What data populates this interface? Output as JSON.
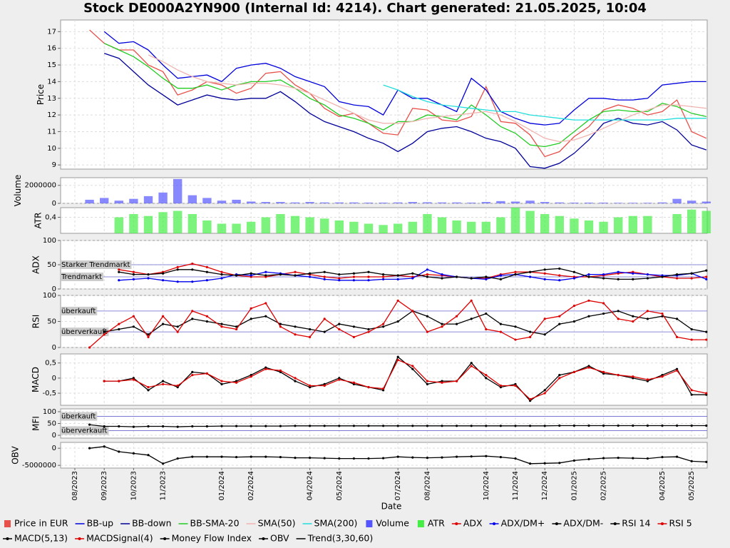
{
  "title": "Stock DE000A2YN900 (Internal Id: 4214). Chart generated: 21.05.2025, 10:04",
  "xlabel": "Date",
  "legend_note": "Trend(3,30,60)",
  "categories": [
    "08/2023",
    null,
    "09/2023",
    null,
    "10/2023",
    null,
    "11/2023",
    null,
    null,
    null,
    "01/2024",
    null,
    "02/2024",
    null,
    null,
    null,
    "04/2024",
    null,
    "05/2024",
    null,
    null,
    null,
    "07/2024",
    null,
    "08/2024",
    null,
    null,
    null,
    "10/2024",
    null,
    "11/2024",
    null,
    "12/2024",
    null,
    "01/2025",
    null,
    "02/2025",
    null,
    null,
    null,
    "04/2025",
    null,
    "05/2025",
    null
  ],
  "chart_data": [
    {
      "type": "line",
      "ylabel": "Price",
      "ylim": [
        8.75,
        17.7
      ],
      "yticks": [
        9,
        10,
        11,
        12,
        13,
        14,
        15,
        16,
        17
      ],
      "grid": true,
      "series": [
        {
          "name": "Price in EUR",
          "color": "#e8504a",
          "values": [
            null,
            17.1,
            16.3,
            15.9,
            15.9,
            15.0,
            14.6,
            13.2,
            13.5,
            14.0,
            13.8,
            13.3,
            13.6,
            14.5,
            14.6,
            13.8,
            13.3,
            12.4,
            11.9,
            12.1,
            11.5,
            10.9,
            10.8,
            12.4,
            12.3,
            11.7,
            11.6,
            11.9,
            13.7,
            11.6,
            11.5,
            10.8,
            9.5,
            9.8,
            10.7,
            11.3,
            12.3,
            12.6,
            12.4,
            12.0,
            12.2,
            12.9,
            11.0,
            10.6
          ]
        },
        {
          "name": "BB-up",
          "color": "#0000dd",
          "values": [
            null,
            null,
            17.0,
            16.3,
            16.4,
            15.9,
            15.0,
            14.2,
            14.3,
            14.4,
            14.0,
            14.8,
            15.0,
            15.1,
            14.8,
            14.3,
            14.0,
            13.7,
            12.8,
            12.6,
            12.5,
            12.0,
            13.5,
            13.0,
            13.0,
            12.6,
            12.2,
            14.2,
            13.5,
            12.2,
            11.8,
            11.5,
            11.4,
            11.5,
            12.3,
            13.0,
            13.0,
            12.9,
            12.9,
            13.0,
            13.8,
            13.9,
            14.0,
            14.0
          ]
        },
        {
          "name": "BB-down",
          "color": "#000099",
          "values": [
            null,
            null,
            15.7,
            15.4,
            14.6,
            13.8,
            13.2,
            12.6,
            12.9,
            13.2,
            13.0,
            12.9,
            13.0,
            13.0,
            13.4,
            12.8,
            12.1,
            11.6,
            11.3,
            11.0,
            10.6,
            10.3,
            9.8,
            10.3,
            11.0,
            11.2,
            11.3,
            11.0,
            10.6,
            10.4,
            10.0,
            8.9,
            8.8,
            9.1,
            9.7,
            10.5,
            11.5,
            11.8,
            11.5,
            11.4,
            11.6,
            11.1,
            10.2,
            9.9
          ]
        },
        {
          "name": "BB-SMA-20",
          "color": "#22cc22",
          "values": [
            null,
            null,
            16.3,
            15.9,
            15.5,
            14.9,
            14.2,
            13.6,
            13.6,
            13.8,
            13.5,
            13.8,
            14.0,
            14.0,
            14.1,
            13.6,
            13.0,
            12.6,
            12.0,
            11.8,
            11.5,
            11.1,
            11.6,
            11.6,
            12.0,
            11.9,
            11.7,
            12.6,
            12.0,
            11.3,
            10.9,
            10.2,
            10.1,
            10.3,
            11.0,
            11.7,
            12.2,
            12.3,
            12.2,
            12.2,
            12.7,
            12.5,
            12.1,
            11.9
          ]
        },
        {
          "name": "SMA(50)",
          "color": "#f0b4b0",
          "values": [
            null,
            null,
            null,
            null,
            null,
            15.6,
            15.2,
            14.7,
            14.3,
            14.0,
            13.9,
            13.8,
            13.9,
            13.9,
            13.8,
            13.6,
            13.3,
            12.9,
            12.5,
            12.1,
            11.7,
            11.5,
            11.5,
            11.6,
            11.8,
            11.9,
            12.0,
            12.1,
            12.2,
            12.0,
            11.6,
            11.1,
            10.6,
            10.4,
            10.5,
            10.8,
            11.2,
            11.6,
            12.0,
            12.3,
            12.6,
            12.6,
            12.5,
            12.4
          ]
        },
        {
          "name": "SMA(200)",
          "color": "#22dddd",
          "values": [
            null,
            null,
            null,
            null,
            null,
            null,
            null,
            null,
            null,
            null,
            null,
            null,
            null,
            null,
            null,
            null,
            null,
            null,
            null,
            null,
            null,
            13.8,
            13.5,
            13.1,
            12.8,
            12.6,
            12.5,
            12.4,
            12.3,
            12.2,
            12.2,
            12.0,
            11.9,
            11.8,
            11.7,
            11.7,
            11.7,
            11.7,
            11.7,
            11.7,
            11.7,
            11.8,
            11.8,
            11.8
          ]
        }
      ]
    },
    {
      "type": "bar",
      "ylabel": "Volume",
      "ylim": [
        0,
        2850000
      ],
      "yticks": [
        0,
        2000000
      ],
      "grid": true,
      "series": [
        {
          "name": "Volume",
          "color": "#5555ff",
          "values": [
            null,
            400000,
            600000,
            300000,
            500000,
            800000,
            1200000,
            2700000,
            900000,
            600000,
            300000,
            400000,
            200000,
            150000,
            150000,
            100000,
            150000,
            100000,
            100000,
            100000,
            80000,
            80000,
            100000,
            150000,
            120000,
            100000,
            100000,
            80000,
            150000,
            250000,
            200000,
            300000,
            150000,
            100000,
            80000,
            80000,
            80000,
            60000,
            60000,
            60000,
            100000,
            500000,
            300000,
            200000
          ]
        }
      ]
    },
    {
      "type": "bar",
      "ylabel": "ATR",
      "ylim": [
        0.15,
        0.55
      ],
      "yticks": [
        {
          "value": 0.4,
          "label": "0,4"
        }
      ],
      "grid": true,
      "series": [
        {
          "name": "ATR",
          "color": "#44ee44",
          "values": [
            null,
            null,
            null,
            0.4,
            0.45,
            0.42,
            0.48,
            0.5,
            0.45,
            0.35,
            0.3,
            0.3,
            0.33,
            0.4,
            0.45,
            0.42,
            0.4,
            0.38,
            0.35,
            0.33,
            0.3,
            0.28,
            0.3,
            0.33,
            0.45,
            0.4,
            0.35,
            0.33,
            0.33,
            0.4,
            0.55,
            0.5,
            0.45,
            0.42,
            0.38,
            0.35,
            0.33,
            0.4,
            0.42,
            0.42,
            null,
            0.45,
            0.52,
            0.5
          ]
        }
      ]
    },
    {
      "type": "line",
      "ylabel": "ADX",
      "ylim": [
        0,
        100
      ],
      "yticks": [
        0,
        50,
        100
      ],
      "grid": true,
      "annotations": [
        {
          "value": 50,
          "label": "Starker Trendmarkt"
        },
        {
          "value": 25,
          "label": "Trendmarkt"
        }
      ],
      "series": [
        {
          "name": "ADX",
          "color": "#dd0000",
          "markers": true,
          "values": [
            null,
            null,
            null,
            40,
            35,
            30,
            35,
            45,
            52,
            45,
            35,
            28,
            25,
            25,
            30,
            35,
            30,
            25,
            22,
            25,
            25,
            25,
            28,
            25,
            30,
            28,
            25,
            22,
            22,
            30,
            35,
            35,
            32,
            28,
            25,
            25,
            28,
            32,
            35,
            30,
            25,
            22,
            22,
            25
          ]
        },
        {
          "name": "ADX/DM+",
          "color": "#0000ee",
          "markers": true,
          "values": [
            null,
            null,
            null,
            18,
            20,
            22,
            18,
            15,
            15,
            18,
            22,
            30,
            28,
            35,
            32,
            28,
            25,
            20,
            18,
            18,
            18,
            20,
            20,
            22,
            40,
            30,
            25,
            22,
            20,
            28,
            30,
            25,
            20,
            18,
            22,
            30,
            30,
            35,
            32,
            30,
            28,
            28,
            32,
            20
          ]
        },
        {
          "name": "ADX/DM-",
          "color": "#000000",
          "markers": true,
          "values": [
            null,
            null,
            null,
            35,
            30,
            30,
            32,
            40,
            40,
            35,
            30,
            28,
            32,
            28,
            30,
            28,
            32,
            35,
            30,
            32,
            35,
            30,
            28,
            32,
            25,
            22,
            25,
            22,
            25,
            20,
            30,
            35,
            40,
            42,
            35,
            25,
            22,
            20,
            20,
            22,
            25,
            30,
            32,
            38
          ]
        }
      ]
    },
    {
      "type": "line",
      "ylabel": "RSI",
      "ylim": [
        0,
        100
      ],
      "yticks": [
        0,
        50,
        100
      ],
      "grid": true,
      "annotations": [
        {
          "value": 70,
          "label": "überkauft"
        },
        {
          "value": 30,
          "label": "überverkauft"
        }
      ],
      "series": [
        {
          "name": "RSI 14",
          "color": "#000000",
          "markers": true,
          "values": [
            null,
            null,
            30,
            35,
            40,
            25,
            45,
            40,
            55,
            50,
            45,
            40,
            55,
            60,
            45,
            40,
            35,
            30,
            45,
            40,
            35,
            40,
            50,
            70,
            60,
            45,
            45,
            55,
            65,
            45,
            40,
            30,
            25,
            45,
            50,
            60,
            65,
            70,
            60,
            55,
            60,
            55,
            35,
            30
          ]
        },
        {
          "name": "RSI 5",
          "color": "#dd0000",
          "markers": true,
          "values": [
            null,
            0,
            25,
            45,
            60,
            20,
            60,
            30,
            70,
            60,
            40,
            35,
            75,
            85,
            40,
            25,
            20,
            55,
            35,
            20,
            30,
            45,
            90,
            70,
            30,
            40,
            60,
            90,
            35,
            30,
            15,
            20,
            55,
            60,
            80,
            90,
            85,
            55,
            50,
            70,
            65,
            20,
            15,
            15
          ]
        }
      ]
    },
    {
      "type": "line",
      "ylabel": "MACD",
      "ylim": [
        -0.9,
        0.8
      ],
      "yticks": [
        {
          "value": -0.5,
          "label": "-0,5"
        },
        0,
        {
          "value": 0.5,
          "label": "0,5"
        }
      ],
      "grid": true,
      "series": [
        {
          "name": "MACD(5,13)",
          "color": "#000000",
          "markers": true,
          "values": [
            null,
            null,
            -0.1,
            -0.1,
            0.0,
            -0.4,
            -0.1,
            -0.3,
            0.2,
            0.15,
            -0.2,
            -0.1,
            0.1,
            0.35,
            0.2,
            -0.1,
            -0.3,
            -0.2,
            0.0,
            -0.2,
            -0.3,
            -0.4,
            0.7,
            0.3,
            -0.2,
            -0.1,
            -0.1,
            0.5,
            0.0,
            -0.3,
            -0.2,
            -0.75,
            -0.4,
            0.1,
            0.2,
            0.4,
            0.15,
            0.1,
            0.0,
            -0.1,
            0.1,
            0.3,
            -0.55,
            -0.55
          ]
        },
        {
          "name": "MACDSignal(4)",
          "color": "#dd0000",
          "markers": true,
          "values": [
            null,
            null,
            -0.1,
            -0.1,
            -0.05,
            -0.3,
            -0.2,
            -0.25,
            0.1,
            0.15,
            -0.1,
            -0.15,
            0.05,
            0.3,
            0.25,
            0.0,
            -0.25,
            -0.25,
            -0.05,
            -0.15,
            -0.3,
            -0.35,
            0.6,
            0.4,
            -0.1,
            -0.15,
            -0.1,
            0.4,
            0.1,
            -0.25,
            -0.25,
            -0.7,
            -0.5,
            0.0,
            0.2,
            0.35,
            0.2,
            0.1,
            0.05,
            -0.05,
            0.05,
            0.25,
            -0.4,
            -0.5
          ]
        }
      ]
    },
    {
      "type": "line",
      "ylabel": "MFI",
      "ylim": [
        -12,
        112
      ],
      "yticks": [
        0,
        50,
        100
      ],
      "grid": true,
      "annotations": [
        {
          "value": 80,
          "label": "überkauft"
        },
        {
          "value": 20,
          "label": "überverkauft"
        }
      ],
      "series": [
        {
          "name": "Money Flow Index",
          "color": "#000000",
          "markers": true,
          "values": [
            null,
            45,
            38,
            38,
            36,
            38,
            38,
            36,
            38,
            38,
            39,
            39,
            39,
            39,
            39,
            40,
            40,
            40,
            40,
            40,
            40,
            40,
            40,
            40,
            40,
            40,
            40,
            40,
            40,
            40,
            40,
            40,
            40,
            41,
            41,
            41,
            41,
            41,
            41,
            41,
            41,
            41,
            41,
            41
          ]
        }
      ]
    },
    {
      "type": "line",
      "ylabel": "OBV",
      "ylim": [
        -5800000,
        1700000
      ],
      "yticks": [
        -5000000,
        0
      ],
      "grid": true,
      "series": [
        {
          "name": "OBV",
          "color": "#000000",
          "markers": true,
          "values": [
            null,
            0,
            500000,
            -1000000,
            -1500000,
            -2000000,
            -4500000,
            -3000000,
            -2500000,
            -2500000,
            -2500000,
            -2600000,
            -2500000,
            -2500000,
            -2600000,
            -2800000,
            -2800000,
            -2900000,
            -3000000,
            -3000000,
            -3000000,
            -2900000,
            -2500000,
            -2700000,
            -2800000,
            -2700000,
            -2500000,
            -2400000,
            -2300000,
            -2600000,
            -3000000,
            -4500000,
            -4400000,
            -4300000,
            -3600000,
            -3200000,
            -2900000,
            -2800000,
            -2900000,
            -3000000,
            -2600000,
            -2500000,
            -3800000,
            -4000000
          ]
        }
      ]
    }
  ]
}
